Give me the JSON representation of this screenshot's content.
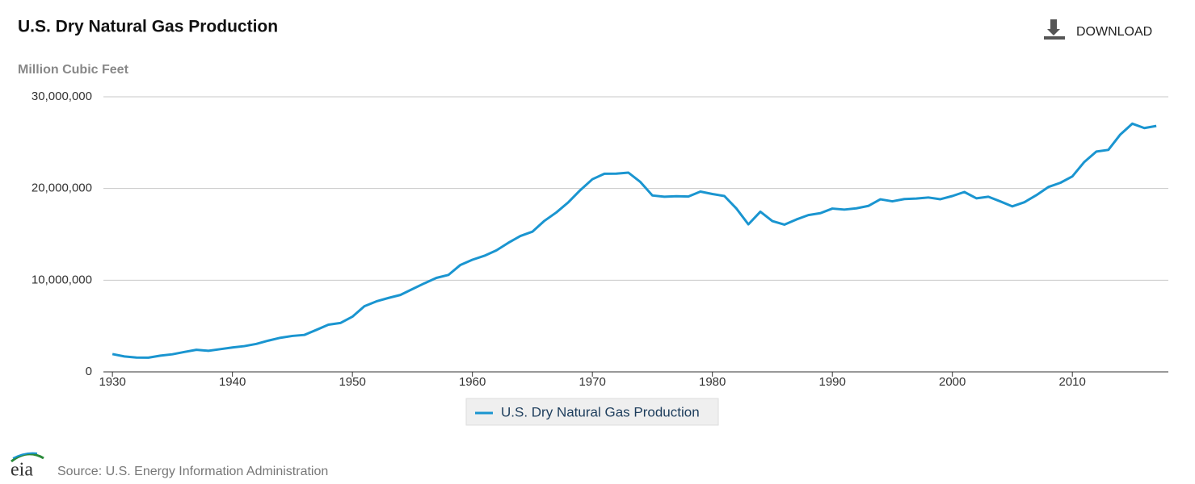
{
  "chart_data": {
    "type": "line",
    "title": "U.S. Dry Natural Gas Production",
    "y_axis_label": "Million Cubic Feet",
    "x": [
      1930,
      1931,
      1932,
      1933,
      1934,
      1935,
      1936,
      1937,
      1938,
      1939,
      1940,
      1941,
      1942,
      1943,
      1944,
      1945,
      1946,
      1947,
      1948,
      1949,
      1950,
      1951,
      1952,
      1953,
      1954,
      1955,
      1956,
      1957,
      1958,
      1959,
      1960,
      1961,
      1962,
      1963,
      1964,
      1965,
      1966,
      1967,
      1968,
      1969,
      1970,
      1971,
      1972,
      1973,
      1974,
      1975,
      1976,
      1977,
      1978,
      1979,
      1980,
      1981,
      1982,
      1983,
      1984,
      1985,
      1986,
      1987,
      1988,
      1989,
      1990,
      1991,
      1992,
      1993,
      1994,
      1995,
      1996,
      1997,
      1998,
      1999,
      2000,
      2001,
      2002,
      2003,
      2004,
      2005,
      2006,
      2007,
      2008,
      2009,
      2010,
      2011,
      2012,
      2013,
      2014,
      2015,
      2016,
      2017
    ],
    "series": [
      {
        "name": "U.S. Dry Natural Gas Production",
        "color": "#1a95d0",
        "values": [
          1940000,
          1680000,
          1560000,
          1550000,
          1770000,
          1920000,
          2170000,
          2410000,
          2300000,
          2480000,
          2660000,
          2810000,
          3050000,
          3410000,
          3720000,
          3920000,
          4030000,
          4580000,
          5150000,
          5330000,
          6020000,
          7160000,
          7690000,
          8060000,
          8390000,
          9030000,
          9660000,
          10250000,
          10570000,
          11660000,
          12230000,
          12660000,
          13250000,
          14080000,
          14820000,
          15290000,
          16470000,
          17390000,
          18500000,
          19830000,
          21010000,
          21610000,
          21620000,
          21730000,
          20710000,
          19240000,
          19100000,
          19160000,
          19120000,
          19660000,
          19400000,
          19180000,
          17820000,
          16090000,
          17470000,
          16450000,
          16060000,
          16620000,
          17100000,
          17310000,
          17810000,
          17700000,
          17840000,
          18100000,
          18820000,
          18600000,
          18850000,
          18900000,
          19020000,
          18830000,
          19180000,
          19620000,
          18930000,
          19100000,
          18590000,
          18050000,
          18500000,
          19270000,
          20160000,
          20620000,
          21320000,
          22900000,
          24030000,
          24210000,
          25890000,
          27070000,
          26590000,
          26820000
        ]
      }
    ],
    "xlim": [
      1929.25,
      2018
    ],
    "ylim": [
      0,
      30000000
    ],
    "xticks": [
      1930,
      1940,
      1950,
      1960,
      1970,
      1980,
      1990,
      2000,
      2010
    ],
    "yticks": [
      0,
      {
        "value": 10000000,
        "label": "10,000,000"
      },
      {
        "value": 20000000,
        "label": "20,000,000"
      },
      {
        "value": 30000000,
        "label": "30,000,000"
      }
    ],
    "grid": true,
    "legend": "bottom"
  },
  "download": "DOWNLOAD",
  "logo": "eia",
  "source": "Source: U.S. Energy Information Administration"
}
